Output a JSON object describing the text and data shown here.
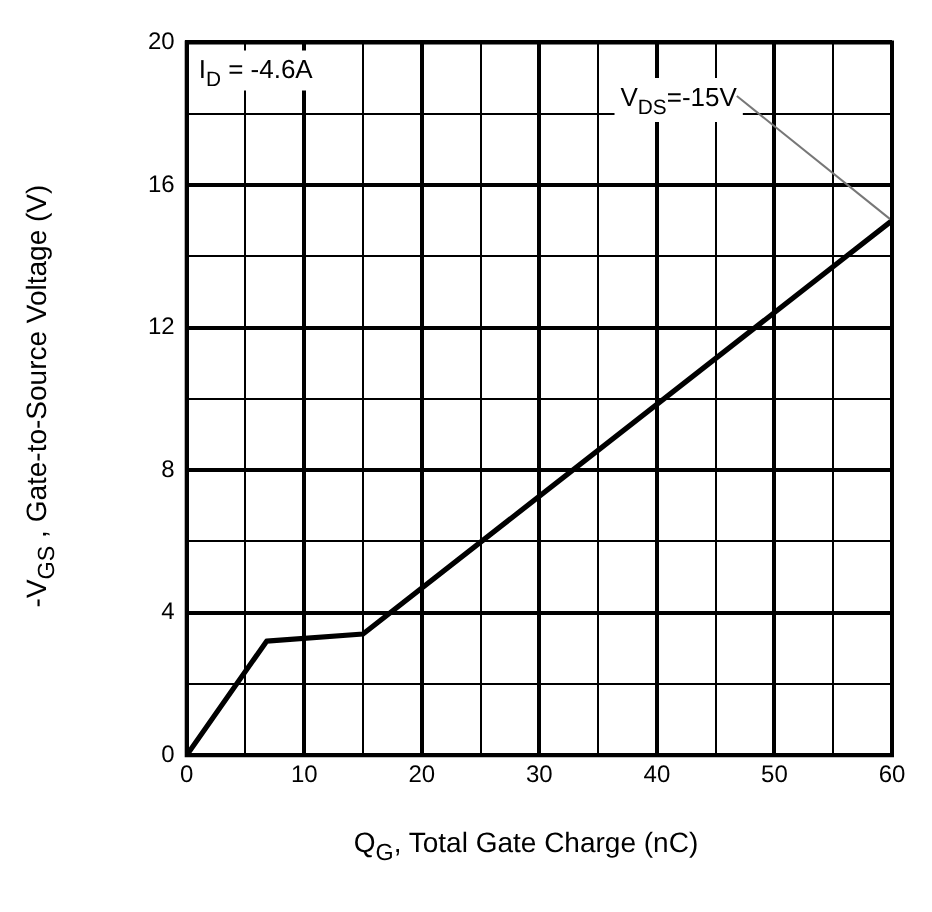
{
  "chart_data": {
    "type": "line",
    "xlabel": "Q$_{G}$, Total Gate Charge (nC)",
    "ylabel": "-V$_{GS}$ , Gate-to-Source Voltage (V)",
    "x": [
      0,
      6.8,
      15,
      60
    ],
    "series": [
      {
        "color": "#000000",
        "values": [
          0,
          3.2,
          3.4,
          15
        ]
      }
    ],
    "xlim": [
      0,
      60
    ],
    "ylim": [
      0,
      20
    ],
    "xticks": [
      0,
      {
        "value": 5,
        "label": null
      },
      10,
      {
        "value": 15,
        "label": null
      },
      20,
      {
        "value": 25,
        "label": null
      },
      30,
      {
        "value": 35,
        "label": null
      },
      40,
      {
        "value": 45,
        "label": null
      },
      50,
      {
        "value": 55,
        "label": null
      },
      60
    ],
    "yticks": [
      0,
      {
        "value": 2,
        "label": null
      },
      4,
      {
        "value": 6,
        "label": null
      },
      8,
      {
        "value": 10,
        "label": null
      },
      12,
      {
        "value": 14,
        "label": null
      },
      16,
      {
        "value": 18,
        "label": null
      },
      20
    ],
    "annotations": [
      "I$_{D}$ = -4.6A",
      {
        "text": "V$_{DS}$=-15V",
        "x": 60,
        "y": 15
      }
    ],
    "grid": true,
    "marker": "none",
    "line_style": "solid",
    "legend": false
  }
}
